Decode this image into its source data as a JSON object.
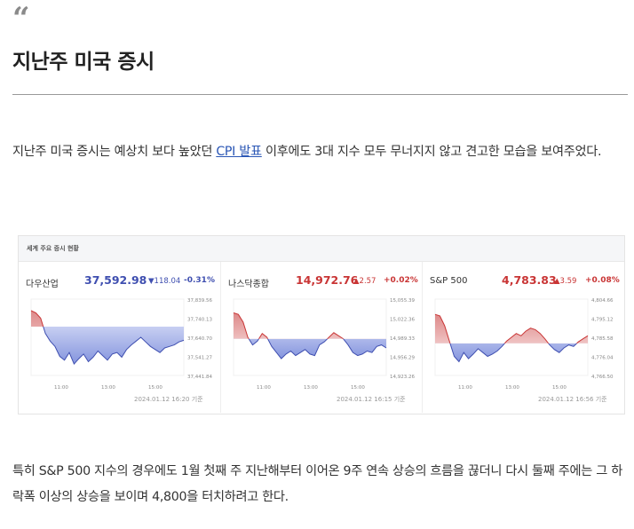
{
  "quote_icon": "quote-mark-icon",
  "quote_glyph": "“",
  "title": "지난주 미국 증시",
  "para1": {
    "before": "지난주 미국 증시는 예상치 보다 높았던 ",
    "link": "CPI 발표",
    "after": " 이후에도 3대 지수 모두 무너지지 않고 견고한 모습을 보여주었다."
  },
  "widget": {
    "title": "세계 주요 증시 현황",
    "panels": [
      {
        "name": "다우산업",
        "value": "37,592.98",
        "change": "▼118.04",
        "pct": "-0.31%",
        "direction": "down",
        "yticks": [
          "37,839.56",
          "37,740.13",
          "37,640.70",
          "37,541.27",
          "37,441.84"
        ],
        "xticks": [
          "11:00",
          "13:00",
          "15:00"
        ],
        "stamp": "2024.01.12 16:20 기준"
      },
      {
        "name": "나스닥종합",
        "value": "14,972.76",
        "change": "▲2.57",
        "pct": "+0.02%",
        "direction": "up",
        "yticks": [
          "15,055.39",
          "15,022.36",
          "14,989.33",
          "14,956.29",
          "14,923.26"
        ],
        "xticks": [
          "11:00",
          "13:00",
          "15:00"
        ],
        "stamp": "2024.01.12 16:15 기준"
      },
      {
        "name": "S&P 500",
        "value": "4,783.83",
        "change": "▲3.59",
        "pct": "+0.08%",
        "direction": "up",
        "yticks": [
          "4,804.66",
          "4,795.12",
          "4,785.58",
          "4,776.04",
          "4,766.50"
        ],
        "xticks": [
          "11:00",
          "13:00",
          "15:00"
        ],
        "stamp": "2024.01.12 16:56 기준"
      }
    ],
    "colors": {
      "down": "#3f4fb0",
      "up": "#c93535"
    }
  },
  "para2": "특히 S&P 500 지수의 경우에도 1월 첫째 주 지난해부터 이어온 9주 연속 상승의 흐름을 끊더니 다시 둘째 주에는 그 하락폭 이상의 상승을 보이며 4,800을 터치하려고 한다."
}
